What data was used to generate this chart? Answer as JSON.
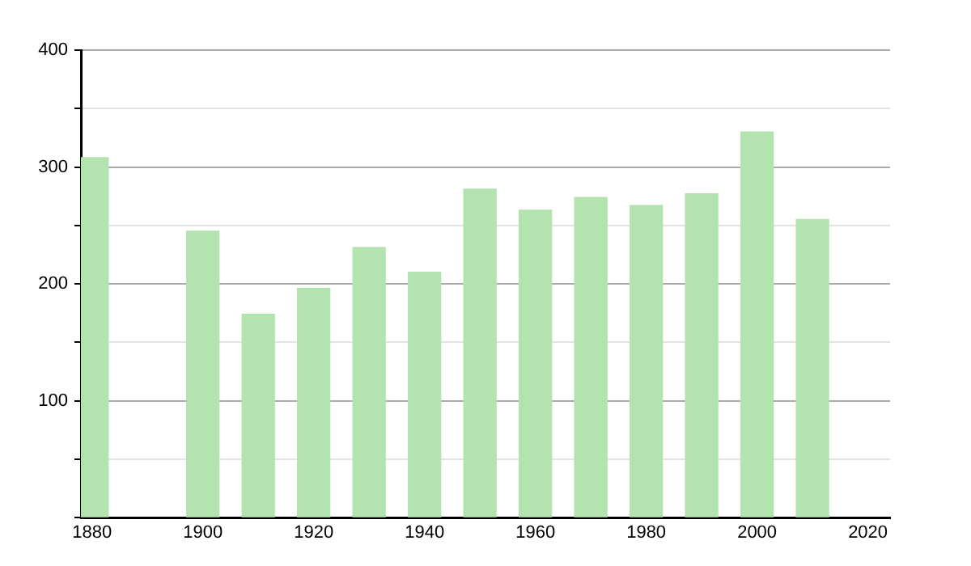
{
  "chart_data": {
    "type": "bar",
    "x": [
      1880,
      1900,
      1910,
      1920,
      1930,
      1940,
      1950,
      1960,
      1970,
      1980,
      1990,
      2000,
      2010
    ],
    "values": [
      308,
      245,
      174,
      196,
      231,
      210,
      281,
      263,
      274,
      267,
      277,
      330,
      255
    ],
    "color": "#b3e4b0",
    "xlim": [
      1878,
      2024
    ],
    "xticks": [
      1880,
      1900,
      1920,
      1940,
      1960,
      1980,
      2000,
      2020
    ],
    "ylim": [
      0,
      400
    ],
    "yticks": [
      {
        "value": 0,
        "label": null
      },
      {
        "value": 50,
        "label": null
      },
      100,
      {
        "value": 150,
        "label": null
      },
      200,
      {
        "value": 250,
        "label": null
      },
      300,
      {
        "value": 350,
        "label": null
      },
      400
    ],
    "grid": "y",
    "legend": false
  }
}
